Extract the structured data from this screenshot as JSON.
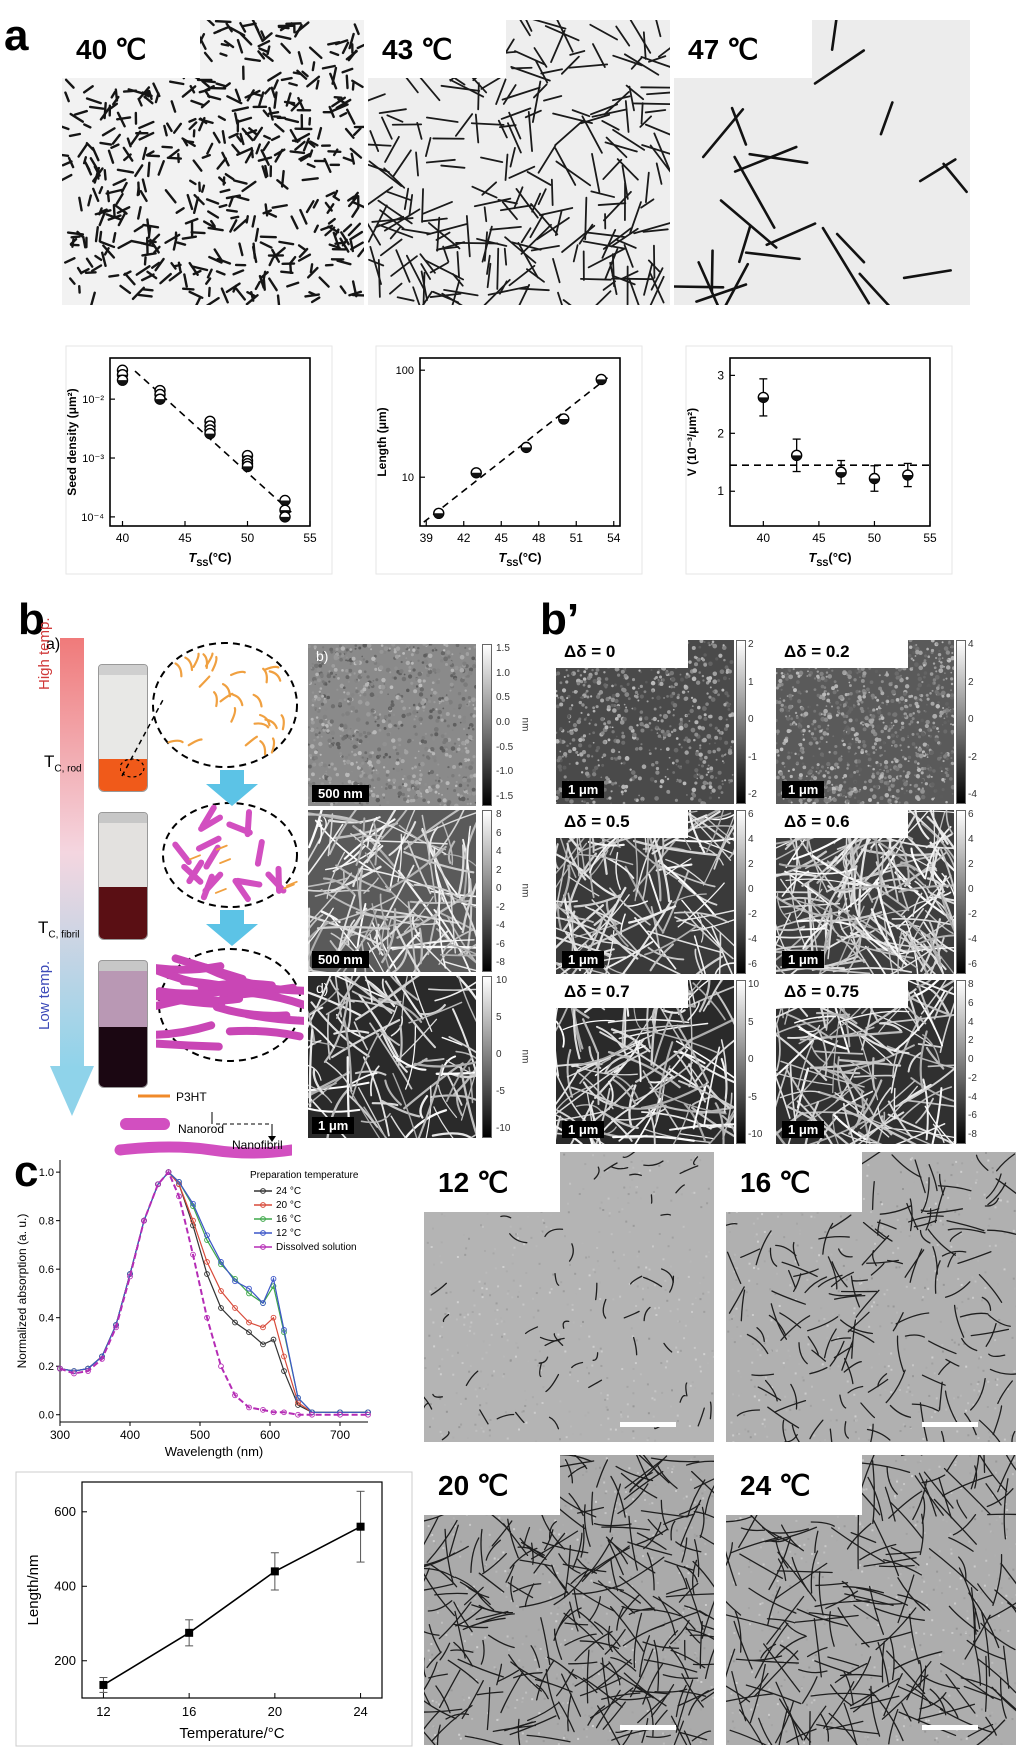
{
  "panels": {
    "a": {
      "letter": "a",
      "micrographs": [
        {
          "label": "40 ℃"
        },
        {
          "label": "43 ℃"
        },
        {
          "label": "47 ℃"
        }
      ],
      "plots": {
        "xlabel_T": "T",
        "xlabel_sub": "SS",
        "xlabel_unit": "(°C)",
        "seed_ylabel": "Seed density (μm²)",
        "length_ylabel": "Length (μm)",
        "v_ylabel": "V (10⁻³/μm²)"
      }
    },
    "b": {
      "letter": "b",
      "sub_a": "a)",
      "sub_b": "b)",
      "sub_c": "c)",
      "sub_d": "d)",
      "high_temp": "High temp.",
      "low_temp": "Low temp.",
      "tc_rod": "T",
      "tc_rod_sub": "C, rod",
      "tc_fibril": "T",
      "tc_fibril_sub": "C, fibril",
      "legend_p3ht": "P3HT",
      "legend_nanorod": "Nanorod",
      "legend_nanofibril": "Nanofibril",
      "scale_b": "500 nm",
      "scale_c": "500 nm",
      "scale_d": "1 μm",
      "colorbar_unit": "nm",
      "cb_b": [
        "1.5",
        "1.0",
        "0.5",
        "0.0",
        "-0.5",
        "-1.0",
        "-1.5"
      ],
      "cb_c": [
        "8",
        "6",
        "4",
        "2",
        "0",
        "-2",
        "-4",
        "-6",
        "-8"
      ],
      "cb_d": [
        "10",
        "5",
        "0",
        "-5",
        "-10"
      ]
    },
    "bprime": {
      "letter": "b’",
      "images": [
        {
          "label": "Δδ = 0",
          "scale": "1 μm",
          "ticks": [
            "2",
            "1",
            "0",
            "-1",
            "-2"
          ]
        },
        {
          "label": "Δδ = 0.2",
          "scale": "1 μm",
          "ticks": [
            "4",
            "2",
            "0",
            "-2",
            "-4"
          ]
        },
        {
          "label": "Δδ = 0.5",
          "scale": "1 μm",
          "ticks": [
            "6",
            "4",
            "2",
            "0",
            "-2",
            "-4",
            "-6"
          ]
        },
        {
          "label": "Δδ = 0.6",
          "scale": "1 μm",
          "ticks": [
            "6",
            "4",
            "2",
            "0",
            "-2",
            "-4",
            "-6"
          ]
        },
        {
          "label": "Δδ = 0.7",
          "scale": "1 μm",
          "ticks": [
            "10",
            "5",
            "0",
            "-5",
            "-10"
          ]
        },
        {
          "label": "Δδ = 0.75",
          "scale": "1 μm",
          "ticks": [
            "8",
            "6",
            "4",
            "2",
            "0",
            "-2",
            "-4",
            "-6",
            "-8"
          ]
        }
      ],
      "colorbar_unit": "nm"
    },
    "c": {
      "letter": "c",
      "micrographs": [
        {
          "label": "12 ℃"
        },
        {
          "label": "16 ℃"
        },
        {
          "label": "20 ℃"
        },
        {
          "label": "24 ℃"
        }
      ],
      "uv": {
        "xlabel": "Wavelength (nm)",
        "ylabel": "Normalized absorption (a. u.)",
        "legend_title": "Preparation temperature",
        "legend": [
          "24 °C",
          "20 °C",
          "16 °C",
          "12 °C",
          "Dissolved solution"
        ]
      },
      "len": {
        "xlabel": "Temperature/°C",
        "ylabel": "Length/nm"
      }
    }
  },
  "colors": {
    "spectrum_24": "#333333",
    "spectrum_20": "#d84a3a",
    "spectrum_16": "#3ea84a",
    "spectrum_12": "#3c56c8",
    "spectrum_dissolved": "#b52cb5",
    "gradient_top": "#f07a7a",
    "gradient_bottom": "#8fd3ea",
    "arrow_blue": "#5cc3e6",
    "p3ht": "#f08a2a",
    "nanorod": "#d24fc0"
  },
  "chart_data": [
    {
      "type": "scatter",
      "title": "",
      "xlabel": "TSS(°C)",
      "ylabel": "Seed density (μm²)",
      "yscale": "log",
      "xlim": [
        39,
        55
      ],
      "ylim": [
        7e-05,
        0.05
      ],
      "xticks": [
        40,
        45,
        50,
        55
      ],
      "yticks_labels": [
        "10⁻⁴",
        "10⁻³",
        "10⁻²"
      ],
      "series": [
        {
          "x": [
            40,
            40,
            40,
            43,
            43,
            43,
            47,
            47,
            47,
            47,
            50,
            50,
            50,
            50,
            53,
            53,
            53
          ],
          "y": [
            0.031,
            0.026,
            0.021,
            0.014,
            0.012,
            0.01,
            0.0042,
            0.0035,
            0.003,
            0.0026,
            0.0011,
            0.0009,
            0.0008,
            0.00072,
            0.00019,
            0.00013,
            0.0001
          ]
        }
      ],
      "fit_line": {
        "x": [
          41,
          53.5
        ],
        "y": [
          0.03,
          0.00012
        ]
      },
      "grid": false
    },
    {
      "type": "scatter",
      "title": "",
      "xlabel": "TSS(°C)",
      "ylabel": "Length (μm)",
      "yscale": "log",
      "xlim": [
        38.5,
        54.5
      ],
      "ylim": [
        3.5,
        130
      ],
      "xticks": [
        39,
        42,
        45,
        48,
        51,
        54
      ],
      "yticks_labels": [
        "10",
        "100"
      ],
      "series": [
        {
          "x": [
            40,
            43,
            47,
            50,
            53
          ],
          "y": [
            4.6,
            11,
            19,
            35,
            82
          ]
        }
      ],
      "fit_line": {
        "x": [
          38.8,
          53.5
        ],
        "y": [
          3.8,
          85
        ]
      },
      "grid": false
    },
    {
      "type": "scatter",
      "title": "",
      "xlabel": "TSS(°C)",
      "ylabel": "V (10⁻³/μm²)",
      "xlim": [
        37,
        55
      ],
      "ylim": [
        0.4,
        3.3
      ],
      "xticks": [
        40,
        45,
        50,
        55
      ],
      "yticks": [
        1,
        2,
        3
      ],
      "series": [
        {
          "x": [
            40,
            43,
            47,
            50,
            53
          ],
          "y": [
            2.62,
            1.62,
            1.33,
            1.22,
            1.28
          ],
          "err": [
            0.32,
            0.28,
            0.2,
            0.22,
            0.2
          ]
        }
      ],
      "hline": 1.45,
      "grid": false
    },
    {
      "type": "line",
      "title": "",
      "xlabel": "Wavelength (nm)",
      "ylabel": "Normalized absorption (a. u.)",
      "xlim": [
        300,
        740
      ],
      "ylim": [
        -0.03,
        1.05
      ],
      "xticks": [
        300,
        400,
        500,
        600,
        700
      ],
      "yticks": [
        0.0,
        0.2,
        0.4,
        0.6,
        0.8,
        1.0
      ],
      "x": [
        300,
        320,
        340,
        360,
        380,
        400,
        420,
        440,
        455,
        470,
        490,
        510,
        530,
        550,
        570,
        590,
        605,
        620,
        640,
        660,
        700,
        740
      ],
      "series": [
        {
          "name": "24 °C",
          "values": [
            0.19,
            0.18,
            0.19,
            0.24,
            0.37,
            0.58,
            0.8,
            0.95,
            1.0,
            0.95,
            0.78,
            0.58,
            0.44,
            0.38,
            0.34,
            0.29,
            0.31,
            0.18,
            0.04,
            0.01,
            0.01,
            0.01
          ]
        },
        {
          "name": "20 °C",
          "values": [
            0.19,
            0.18,
            0.19,
            0.24,
            0.37,
            0.58,
            0.8,
            0.95,
            1.0,
            0.95,
            0.8,
            0.63,
            0.51,
            0.44,
            0.38,
            0.36,
            0.4,
            0.24,
            0.05,
            0.01,
            0.01,
            0.01
          ]
        },
        {
          "name": "16 °C",
          "values": [
            0.19,
            0.18,
            0.19,
            0.24,
            0.37,
            0.58,
            0.8,
            0.95,
            1.0,
            0.96,
            0.86,
            0.72,
            0.62,
            0.56,
            0.5,
            0.46,
            0.53,
            0.34,
            0.07,
            0.01,
            0.01,
            0.01
          ]
        },
        {
          "name": "12 °C",
          "values": [
            0.19,
            0.18,
            0.19,
            0.24,
            0.37,
            0.58,
            0.8,
            0.95,
            1.0,
            0.96,
            0.87,
            0.74,
            0.63,
            0.55,
            0.52,
            0.46,
            0.56,
            0.35,
            0.07,
            0.01,
            0.01,
            0.01
          ]
        },
        {
          "name": "Dissolved solution",
          "values": [
            0.19,
            0.17,
            0.18,
            0.23,
            0.36,
            0.57,
            0.8,
            0.95,
            1.0,
            0.9,
            0.66,
            0.4,
            0.2,
            0.08,
            0.03,
            0.02,
            0.01,
            0.01,
            0.0,
            0.0,
            0.0,
            0.0
          ]
        }
      ],
      "legend_position": "top-right",
      "grid": false
    },
    {
      "type": "line",
      "title": "",
      "xlabel": "Temperature/°C",
      "ylabel": "Length/nm",
      "xlim": [
        11,
        25
      ],
      "ylim": [
        100,
        680
      ],
      "xticks": [
        12,
        16,
        20,
        24
      ],
      "yticks": [
        200,
        400,
        600
      ],
      "series": [
        {
          "x": [
            12,
            16,
            20,
            24
          ],
          "values": [
            135,
            275,
            440,
            560
          ],
          "err": [
            20,
            35,
            50,
            95
          ]
        }
      ],
      "grid": false
    }
  ]
}
